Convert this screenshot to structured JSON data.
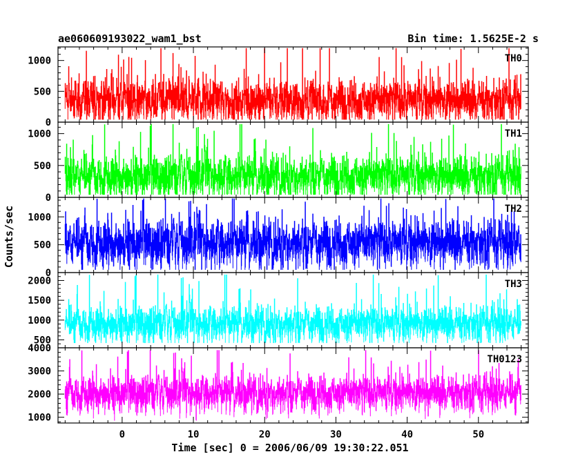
{
  "chart_data": {
    "type": "line",
    "title_left": "ae060609193022_wam1_bst",
    "title_right": "Bin time: 1.5625E-2 s",
    "xlabel": "Time [sec] 0 = 2006/06/09 19:30:22.051",
    "ylabel": "Counts/sec",
    "xlim": [
      -9,
      57
    ],
    "x_data_range": [
      -8,
      56
    ],
    "x_ticks": [
      "0",
      "10",
      "20",
      "30",
      "40",
      "50"
    ],
    "x_tick_values": [
      0,
      10,
      20,
      30,
      40,
      50
    ],
    "grid": false,
    "series": [
      {
        "name": "TH0",
        "color": "#ff0000",
        "ylim": [
          0,
          1220
        ],
        "yticks": [
          0,
          500,
          1000
        ],
        "ytick_labels": [
          "0",
          "500",
          "1000"
        ],
        "mean": 420,
        "min": 40,
        "max": 1200,
        "spread": 290
      },
      {
        "name": "TH1",
        "color": "#00ff00",
        "ylim": [
          0,
          1180
        ],
        "yticks": [
          0,
          500,
          1000
        ],
        "ytick_labels": [
          "0",
          "500",
          "1000"
        ],
        "mean": 400,
        "min": 40,
        "max": 1150,
        "spread": 280
      },
      {
        "name": "TH2",
        "color": "#0000ff",
        "ylim": [
          0,
          1350
        ],
        "yticks": [
          0,
          500,
          1000
        ],
        "ytick_labels": [
          "0",
          "500",
          "1000"
        ],
        "mean": 620,
        "min": 50,
        "max": 1330,
        "spread": 360
      },
      {
        "name": "TH3",
        "color": "#00ffff",
        "ylim": [
          300,
          2200
        ],
        "yticks": [
          500,
          1000,
          1500,
          2000
        ],
        "ytick_labels": [
          "500",
          "1000",
          "1500",
          "2000"
        ],
        "mean": 1000,
        "min": 420,
        "max": 2150,
        "spread": 380
      },
      {
        "name": "TH0123",
        "color": "#ff00ff",
        "ylim": [
          750,
          4000
        ],
        "yticks": [
          1000,
          2000,
          3000,
          4000
        ],
        "ytick_labels": [
          "1000",
          "2000",
          "3000",
          "4000"
        ],
        "mean": 2200,
        "min": 850,
        "max": 3900,
        "spread": 650
      }
    ]
  }
}
